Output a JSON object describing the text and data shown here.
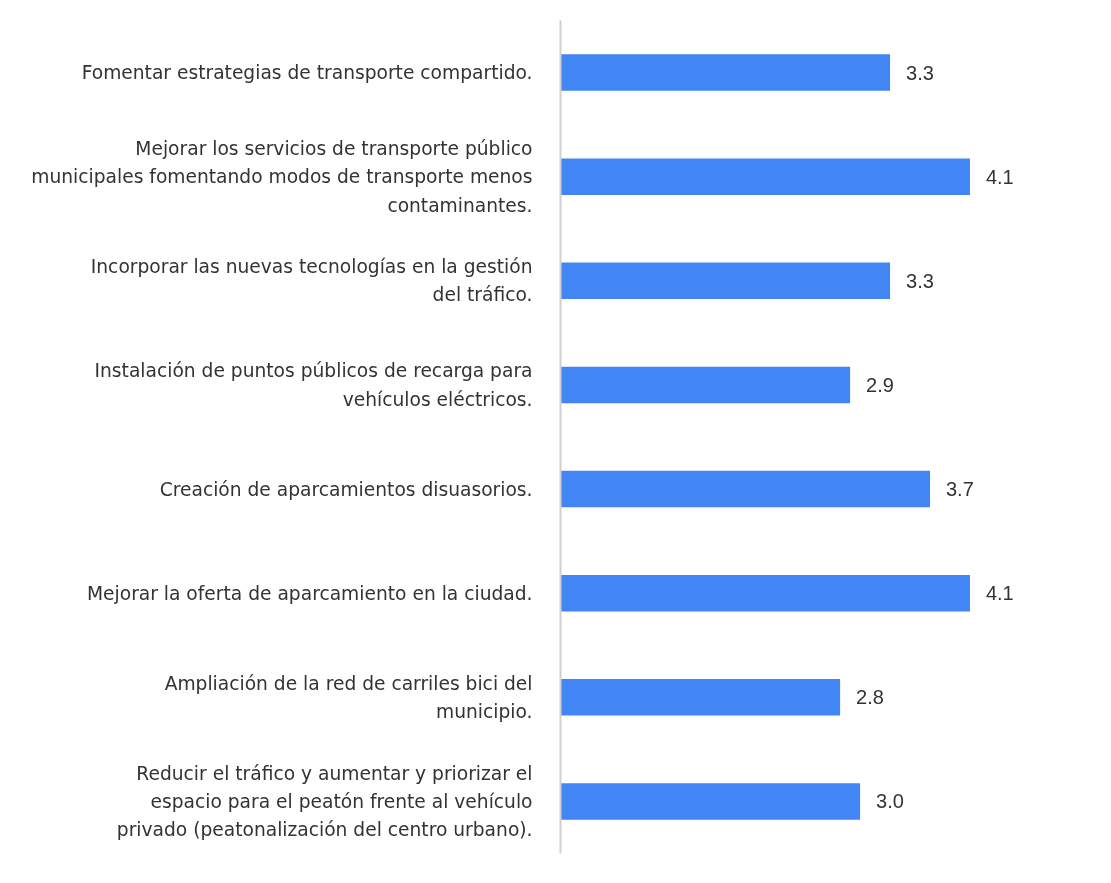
{
  "chart_data": {
    "type": "bar",
    "orientation": "horizontal",
    "grid": false,
    "categories": [
      "Fomentar estrategias de transporte compartido.",
      "Mejorar los servicios de transporte público municipales fomentando modos de transporte menos contaminantes.",
      "Incorporar las nuevas tecnologías en la gestión del tráfico.",
      "Instalación de puntos públicos de recarga para vehículos eléctricos.",
      "Creación de aparcamientos disuasorios.",
      "Mejorar la oferta de aparcamiento en la ciudad.",
      "Ampliación de la red de carriles bici del municipio.",
      "Reducir el tráfico y aumentar y priorizar el espacio para el peatón frente al vehículo privado (peatonalización del centro urbano)."
    ],
    "values": [
      3.3,
      4.1,
      3.3,
      2.9,
      3.7,
      4.1,
      2.8,
      3.0
    ],
    "value_labels": [
      "3.3",
      "4.1",
      "3.3",
      "2.9",
      "3.7",
      "4.1",
      "2.8",
      "3.0"
    ],
    "color": "#4285f4"
  }
}
